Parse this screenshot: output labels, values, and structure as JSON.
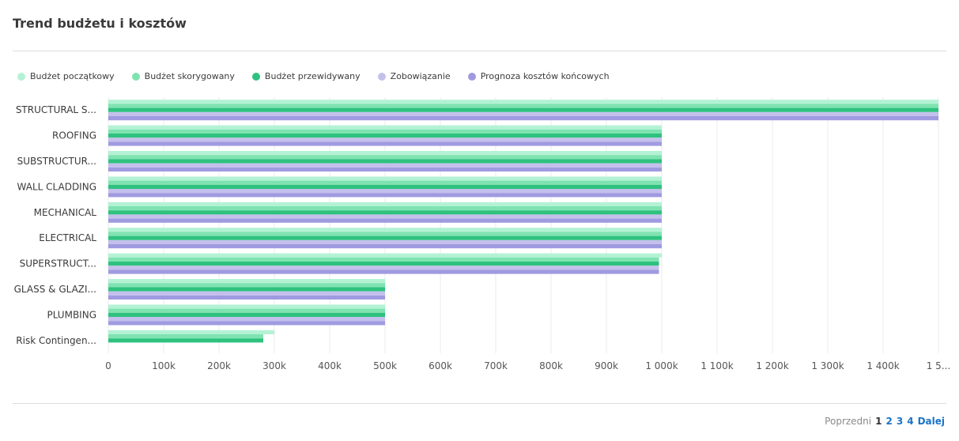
{
  "header": {
    "title": "Trend budżetu i kosztów"
  },
  "chart_data": {
    "type": "bar",
    "orientation": "horizontal",
    "categories": [
      "STRUCTURAL S...",
      "ROOFING",
      "SUBSTRUCTUR...",
      "WALL CLADDING",
      "MECHANICAL",
      "ELECTRICAL",
      "SUPERSTRUCT...",
      "GLASS & GLAZI...",
      "PLUMBING",
      "Risk Contingen..."
    ],
    "series": [
      {
        "name": "Budżet początkowy",
        "color": "#b3f2d4",
        "values": [
          1500000,
          1000000,
          1000000,
          1000000,
          1000000,
          1000000,
          1000000,
          500000,
          500000,
          300000
        ]
      },
      {
        "name": "Budżet skorygowany",
        "color": "#7fe3b1",
        "values": [
          1500000,
          1000000,
          1000000,
          1000000,
          1000000,
          1000000,
          995000,
          500000,
          500000,
          280000
        ]
      },
      {
        "name": "Budżet przewidywany",
        "color": "#2ec27e",
        "values": [
          1500000,
          1000000,
          1000000,
          1000000,
          1000000,
          1000000,
          995000,
          500000,
          500000,
          280000
        ]
      },
      {
        "name": "Zobowiązanie",
        "color": "#c4c0ec",
        "values": [
          1500000,
          1000000,
          1000000,
          1000000,
          1000000,
          1000000,
          995000,
          500000,
          500000,
          0
        ]
      },
      {
        "name": "Prognoza kosztów końcowych",
        "color": "#a09ae0",
        "values": [
          1500000,
          1000000,
          1000000,
          1000000,
          1000000,
          1000000,
          995000,
          500000,
          500000,
          0
        ]
      }
    ],
    "x_ticks": [
      0,
      100000,
      200000,
      300000,
      400000,
      500000,
      600000,
      700000,
      800000,
      900000,
      1000000,
      1100000,
      1200000,
      1300000,
      1400000,
      1500000
    ],
    "x_tick_labels": [
      "0",
      "100k",
      "200k",
      "300k",
      "400k",
      "500k",
      "600k",
      "700k",
      "800k",
      "900k",
      "1 000k",
      "1 100k",
      "1 200k",
      "1 300k",
      "1 400k",
      "1 5..."
    ],
    "xlim": [
      0,
      1500000
    ],
    "grid": true,
    "legend_position": "top-left"
  },
  "pagination": {
    "prev_label": "Poprzedni",
    "current": "1",
    "pages": [
      "2",
      "3",
      "4"
    ],
    "next_label": "Dalej"
  }
}
